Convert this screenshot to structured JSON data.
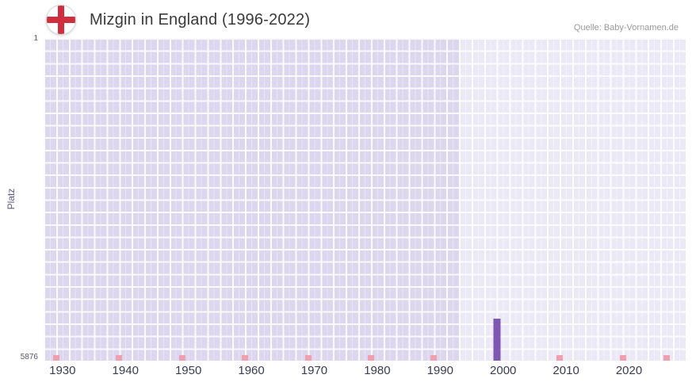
{
  "header": {
    "title": "Mizgin in England (1996-2022)",
    "source": "Quelle: Baby-Vornamen.de"
  },
  "chart_data": {
    "type": "bar",
    "title": "Mizgin in England (1996-2022)",
    "xlabel": "",
    "ylabel": "Platz",
    "x_ticks": [
      1930,
      1940,
      1950,
      1960,
      1970,
      1980,
      1990,
      2000,
      2010,
      2020
    ],
    "x_range": [
      1927,
      2029
    ],
    "y_axis": {
      "top_label": "1",
      "bottom_label": "5876",
      "min": 1,
      "max": 5876,
      "inverted": true
    },
    "series": [
      {
        "name": "Mizgin",
        "points": [
          {
            "year": 1999,
            "rank": 5111
          }
        ]
      }
    ],
    "data_period_highlight": {
      "from": 1993,
      "to": 2029
    },
    "decade_markers": [
      1929,
      1939,
      1949,
      1959,
      1969,
      1979,
      1989,
      1999,
      2009,
      2019,
      2026
    ],
    "grid": true,
    "legend": "none",
    "colors": {
      "bar": "#7e57b0",
      "plot_bg": "#dcd7ee",
      "plot_bg_highlight": "#ece9f7",
      "grid_line": "#ffffff",
      "decade_marker": "#ef9fb0",
      "title": "#3a3a3a",
      "source": "#9a9a9a",
      "x_tick_text": "#3b3b52",
      "y_tick_text": "#555566",
      "ylabel_text": "#5c5c7d",
      "flag_cross": "#cf2e3e"
    }
  }
}
